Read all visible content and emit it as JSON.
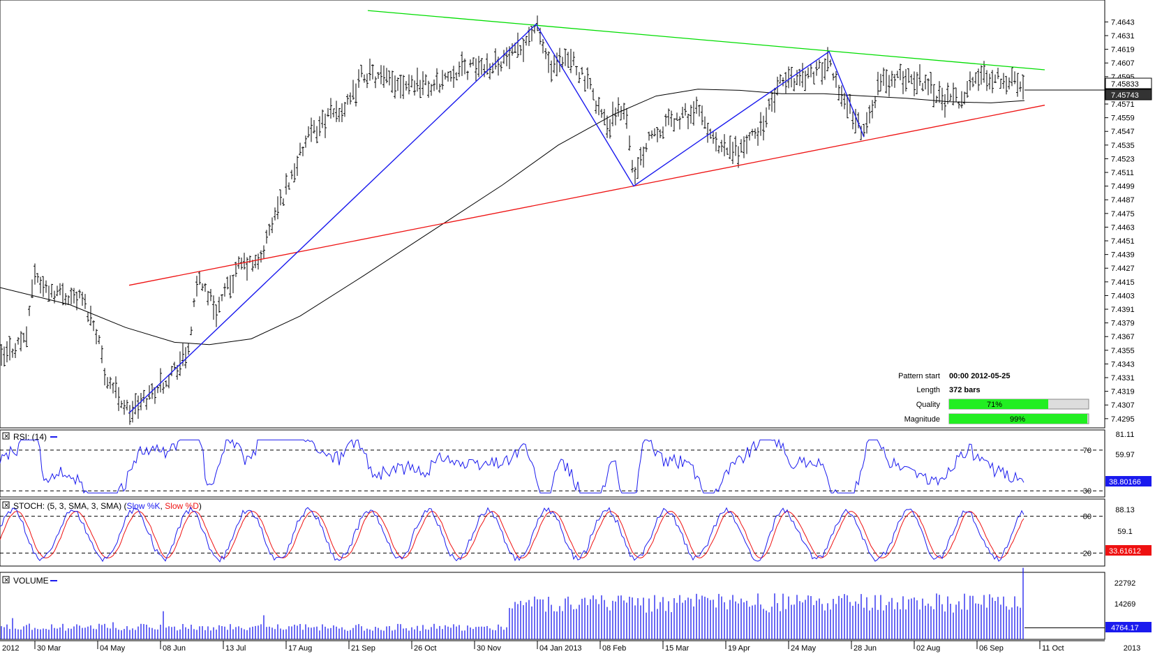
{
  "colors": {
    "bars": "#000000",
    "upper_trend": "#00dd00",
    "lower_trend": "#ee1111",
    "zigzag": "#1a1aee",
    "moving_average": "#000000",
    "rsi": "#1a1aee",
    "stoch_k": "#1a1aee",
    "stoch_d": "#ee1111",
    "volume": "#1a1aee",
    "meter_fill": "#22ee22",
    "meter_empty": "#dddddd"
  },
  "pattern_info": {
    "start_label": "Pattern start",
    "start_value": "00:00 2012-05-25",
    "length_label": "Length",
    "length_value": "372 bars",
    "quality_label": "Quality",
    "quality_value": "71%",
    "quality_fraction": 0.71,
    "magnitude_label": "Magnitude",
    "magnitude_value": "99%",
    "magnitude_fraction": 0.99
  },
  "chart_data": [
    {
      "type": "ohlc",
      "panel": "price",
      "y_ticks": [
        "7.4643",
        "7.4631",
        "7.4619",
        "7.4607",
        "7.4595",
        "7.4583",
        "7.4571",
        "7.4559",
        "7.4547",
        "7.4535",
        "7.4523",
        "7.4511",
        "7.4499",
        "7.4487",
        "7.4475",
        "7.4463",
        "7.4451",
        "7.4439",
        "7.4427",
        "7.4415",
        "7.4403",
        "7.4391",
        "7.4379",
        "7.4367",
        "7.4355",
        "7.4343",
        "7.4331",
        "7.4319",
        "7.4307",
        "7.4295"
      ],
      "ylim": [
        7.429,
        7.465
      ],
      "last_price_label": "7.45833",
      "ma_label": "7.45743",
      "series_path": [
        [
          0,
          7.4345
        ],
        [
          40,
          7.437
        ],
        [
          48,
          7.4425
        ],
        [
          62,
          7.441
        ],
        [
          88,
          7.4405
        ],
        [
          118,
          7.44
        ],
        [
          140,
          7.437
        ],
        [
          150,
          7.4335
        ],
        [
          185,
          7.43
        ],
        [
          205,
          7.431
        ],
        [
          230,
          7.4325
        ],
        [
          268,
          7.435
        ],
        [
          285,
          7.442
        ],
        [
          310,
          7.439
        ],
        [
          345,
          7.443
        ],
        [
          370,
          7.443
        ],
        [
          395,
          7.4475
        ],
        [
          440,
          7.454
        ],
        [
          470,
          7.456
        ],
        [
          500,
          7.457
        ],
        [
          520,
          7.4598
        ],
        [
          560,
          7.459
        ],
        [
          600,
          7.459
        ],
        [
          620,
          7.4585
        ],
        [
          650,
          7.46
        ],
        [
          700,
          7.4605
        ],
        [
          740,
          7.4615
        ],
        [
          768,
          7.464
        ],
        [
          790,
          7.46
        ],
        [
          820,
          7.461
        ],
        [
          850,
          7.458
        ],
        [
          870,
          7.455
        ],
        [
          895,
          7.457
        ],
        [
          910,
          7.4505
        ],
        [
          930,
          7.4545
        ],
        [
          960,
          7.4555
        ],
        [
          1000,
          7.4565
        ],
        [
          1030,
          7.453
        ],
        [
          1060,
          7.453
        ],
        [
          1090,
          7.455
        ],
        [
          1120,
          7.459
        ],
        [
          1150,
          7.4595
        ],
        [
          1188,
          7.4605
        ],
        [
          1210,
          7.4575
        ],
        [
          1238,
          7.4545
        ],
        [
          1260,
          7.459
        ],
        [
          1300,
          7.4595
        ],
        [
          1330,
          7.459
        ],
        [
          1350,
          7.4575
        ],
        [
          1375,
          7.4575
        ],
        [
          1400,
          7.4595
        ],
        [
          1430,
          7.4595
        ],
        [
          1455,
          7.459
        ],
        [
          1468,
          7.4583
        ]
      ],
      "moving_average": [
        [
          0,
          7.441
        ],
        [
          100,
          7.4395
        ],
        [
          180,
          7.4375
        ],
        [
          250,
          7.4362
        ],
        [
          300,
          7.436
        ],
        [
          360,
          7.4365
        ],
        [
          430,
          7.4385
        ],
        [
          520,
          7.442
        ],
        [
          620,
          7.446
        ],
        [
          720,
          7.45
        ],
        [
          800,
          7.4535
        ],
        [
          880,
          7.4562
        ],
        [
          940,
          7.4578
        ],
        [
          1000,
          7.4584
        ],
        [
          1060,
          7.4583
        ],
        [
          1120,
          7.458
        ],
        [
          1180,
          7.458
        ],
        [
          1240,
          7.4578
        ],
        [
          1300,
          7.4576
        ],
        [
          1360,
          7.4573
        ],
        [
          1420,
          7.4572
        ],
        [
          1468,
          7.4574
        ]
      ],
      "upper_trendline": [
        [
          527,
          7.4653
        ],
        [
          1497,
          7.4601
        ]
      ],
      "lower_trendline": [
        [
          185,
          7.4412
        ],
        [
          1497,
          7.457
        ]
      ],
      "zigzag": [
        [
          185,
          7.43
        ],
        [
          768,
          7.4641
        ],
        [
          908,
          7.4499
        ],
        [
          1188,
          7.4617
        ],
        [
          1238,
          7.4542
        ]
      ]
    },
    {
      "type": "line",
      "panel": "rsi",
      "title": "RSI: (14)",
      "y_ticks": [
        "81.11",
        "59.97",
        "38.80166"
      ],
      "levels": [
        "70",
        "30"
      ],
      "ylim": [
        24,
        87
      ],
      "current_label": "38.80166"
    },
    {
      "type": "line",
      "panel": "stoch",
      "title": "STOCH: (5, 3, SMA, 3, SMA)",
      "legend": [
        "Slow %K",
        "Slow %D"
      ],
      "y_ticks": [
        "88.13",
        "59.1",
        "33.61612"
      ],
      "levels": [
        "80",
        "20"
      ],
      "ylim": [
        0,
        100
      ],
      "current_label": "33.61612"
    },
    {
      "type": "bar",
      "panel": "volume",
      "title": "VOLUME",
      "y_ticks": [
        "22792",
        "14269",
        "4764.17"
      ],
      "ylim": [
        0,
        26000
      ],
      "current_label": "4764.17"
    }
  ],
  "x_axis": {
    "labels": [
      "2012",
      "30 Mar",
      "04 May",
      "08 Jun",
      "13 Jul",
      "17 Aug",
      "21 Sep",
      "26 Oct",
      "30 Nov",
      "04 Jan 2013",
      "08 Feb",
      "15 Mar",
      "19 Apr",
      "24 May",
      "28 Jun",
      "02 Aug",
      "06 Sep",
      "11 Oct",
      "2013"
    ]
  }
}
